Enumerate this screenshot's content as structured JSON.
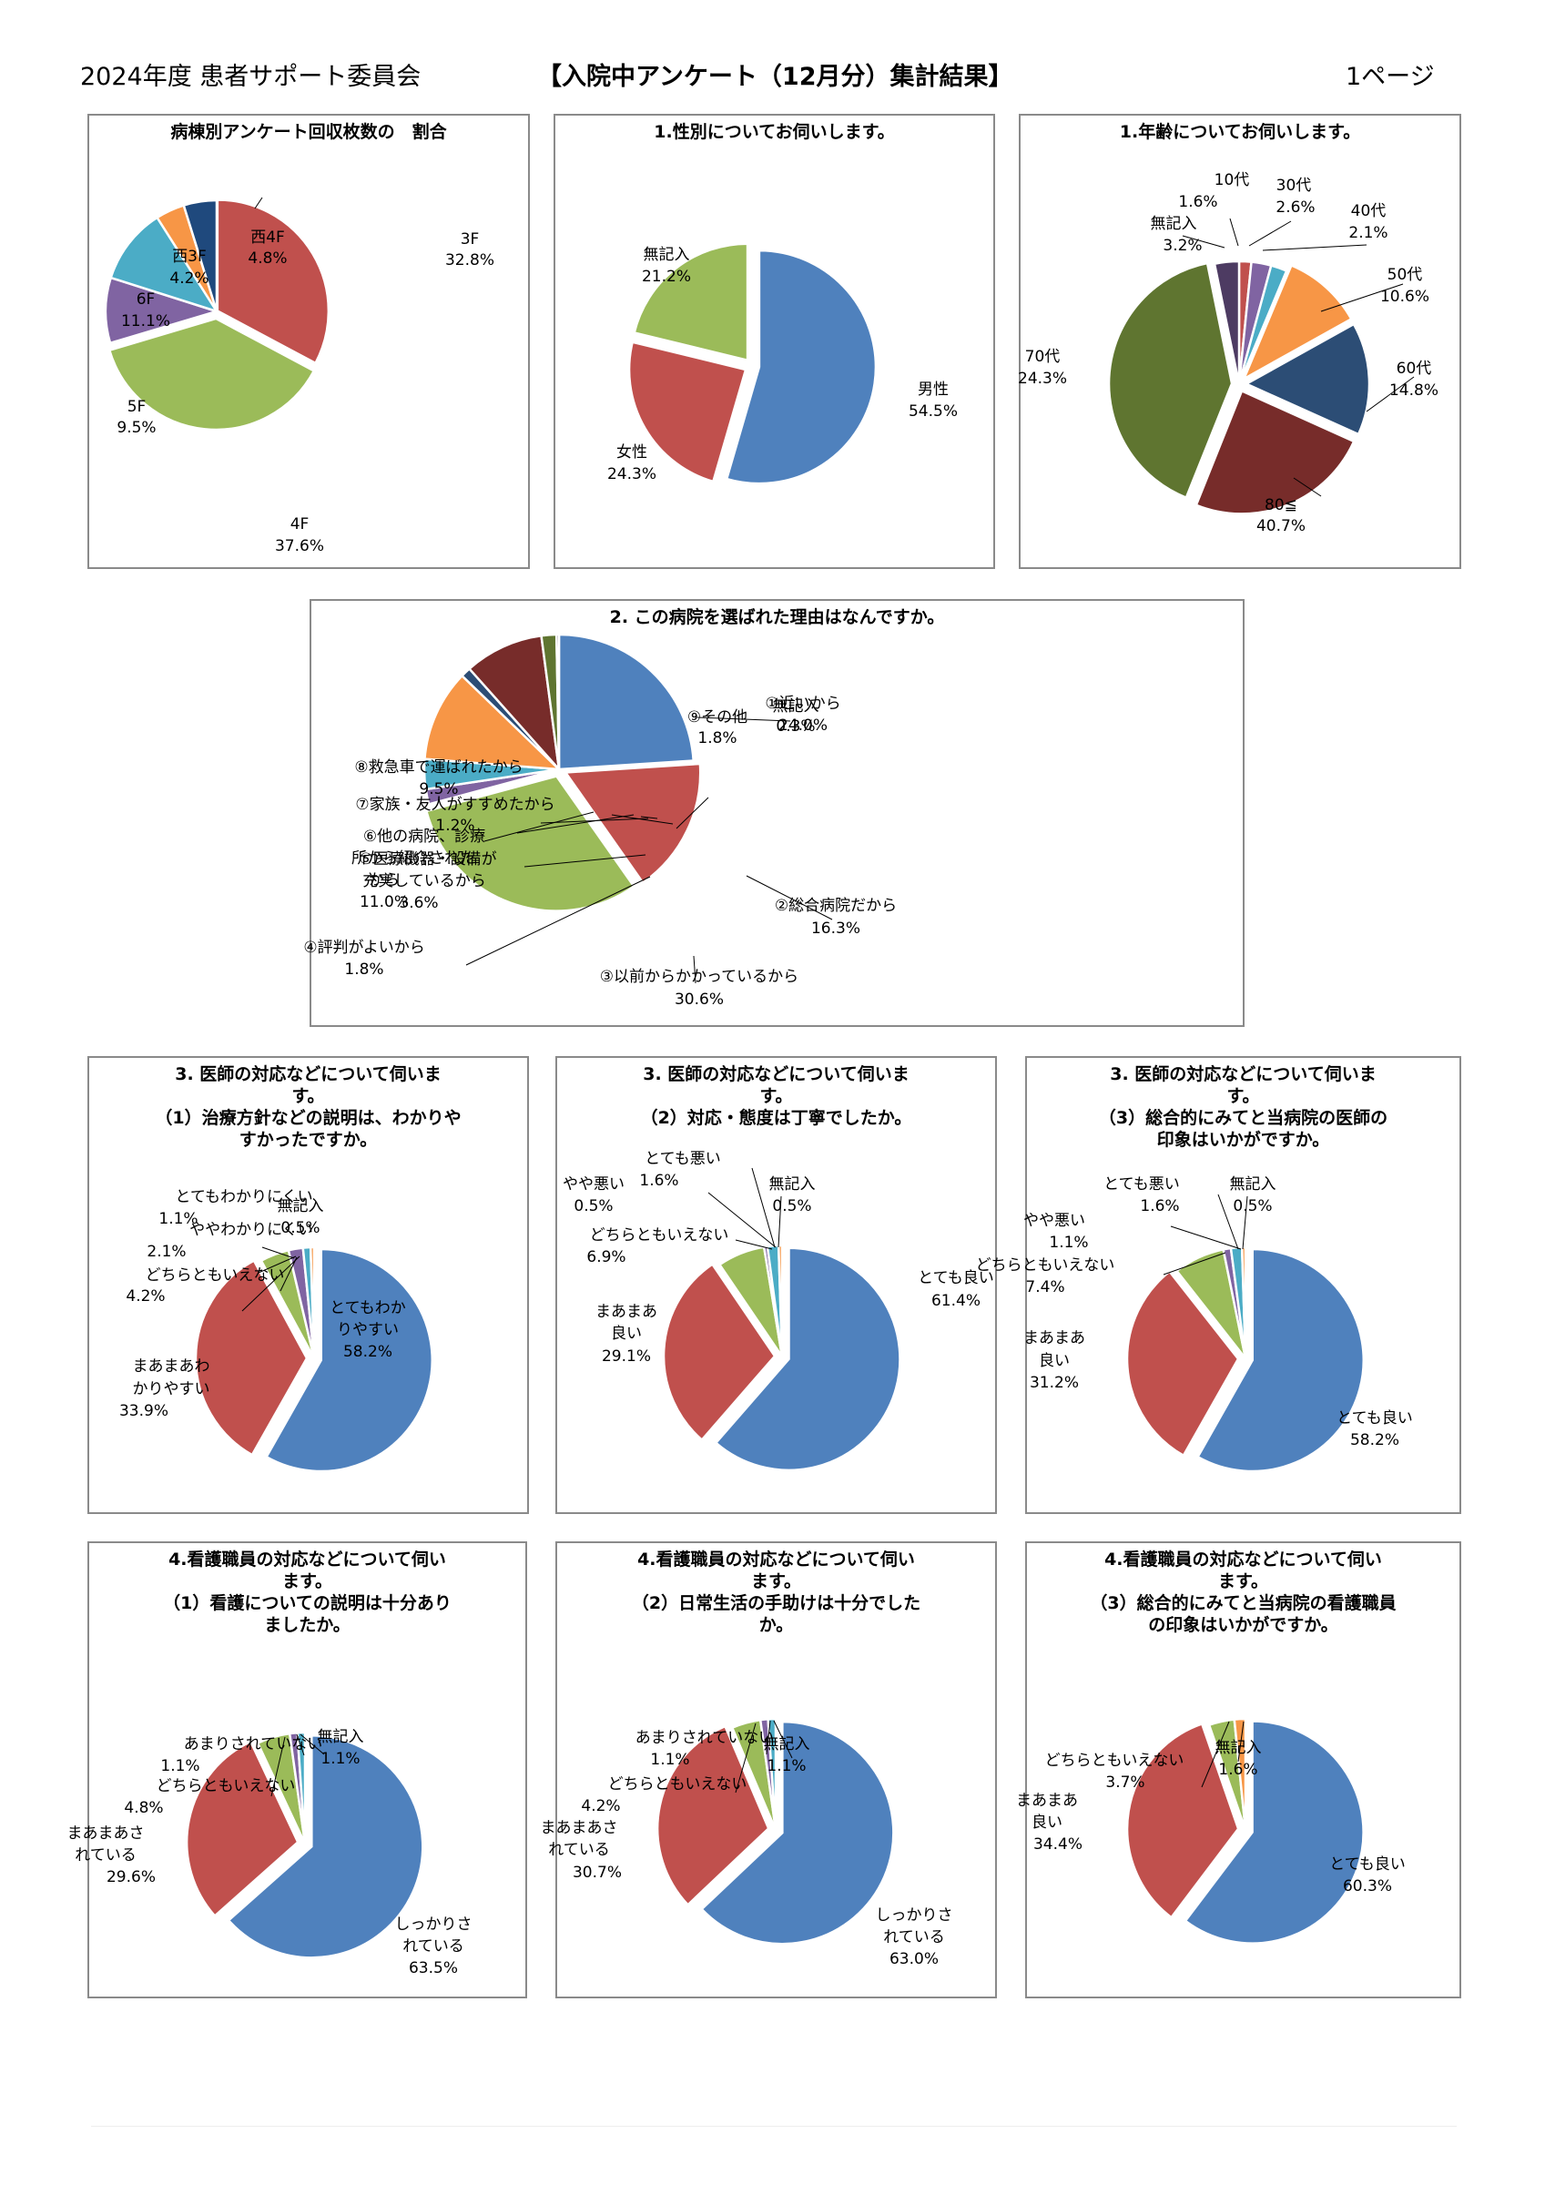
{
  "header": {
    "left": "2024年度 患者サポート委員会",
    "center": "【入院中アンケート（12月分）集計結果】",
    "right": "1ページ"
  },
  "chart_data": [
    {
      "id": "c1",
      "type": "pie",
      "title": [
        "病棟別アンケート回収枚数の　割合"
      ],
      "slices": [
        {
          "name": "3F",
          "value": 32.8,
          "color": "#C0504D"
        },
        {
          "name": "4F",
          "value": 37.6,
          "color": "#9BBB59"
        },
        {
          "name": "5F",
          "value": 9.5,
          "color": "#8064A2"
        },
        {
          "name": "6F",
          "value": 11.1,
          "color": "#4BACC6"
        },
        {
          "name": "西3F",
          "value": 4.2,
          "color": "#F79646"
        },
        {
          "name": "西4F",
          "value": 4.8,
          "color": "#1F497D"
        }
      ],
      "labels": [
        "3F",
        "32.8%",
        "4F",
        "37.6%",
        "5F",
        "9.5%",
        "6F",
        "11.1%",
        "西3F",
        "4.2%",
        "西4F",
        "4.8%"
      ]
    },
    {
      "id": "c2",
      "type": "pie",
      "title": [
        "1.性別についてお伺いします。"
      ],
      "slices": [
        {
          "name": "男性",
          "value": 54.5,
          "color": "#4F81BD"
        },
        {
          "name": "女性",
          "value": 24.3,
          "color": "#C0504D"
        },
        {
          "name": "無記入",
          "value": 21.2,
          "color": "#9BBB59"
        }
      ],
      "labels": [
        "男性",
        "54.5%",
        "女性",
        "24.3%",
        "無記入",
        "21.2%"
      ]
    },
    {
      "id": "c3",
      "type": "pie",
      "title": [
        "1.年齢についてお伺いします。"
      ],
      "slices": [
        {
          "name": "10代",
          "value": 1.6,
          "color": "#C0504D"
        },
        {
          "name": "30代",
          "value": 2.6,
          "color": "#8064A2"
        },
        {
          "name": "40代",
          "value": 2.1,
          "color": "#4BACC6"
        },
        {
          "name": "50代",
          "value": 10.6,
          "color": "#F79646"
        },
        {
          "name": "60代",
          "value": 14.8,
          "color": "#2C4D75"
        },
        {
          "name": "70代",
          "value": 24.3,
          "color": "#772C2A"
        },
        {
          "name": "80≦",
          "value": 40.7,
          "color": "#5F7530"
        },
        {
          "name": "無記入",
          "value": 3.2,
          "color": "#4D3B62"
        }
      ],
      "labels": [
        "10代",
        "1.6%",
        "30代",
        "2.6%",
        "40代",
        "2.1%",
        "50代",
        "10.6%",
        "60代",
        "14.8%",
        "70代",
        "24.3%",
        "80≦",
        "40.7%",
        "無記入",
        "3.2%"
      ]
    },
    {
      "id": "c4",
      "type": "pie",
      "title": [
        "2. この病院を選ばれた理由はなんですか。"
      ],
      "slices": [
        {
          "name": "①近いから",
          "value": 24.0,
          "color": "#4F81BD"
        },
        {
          "name": "②総合病院だから",
          "value": 16.3,
          "color": "#C0504D"
        },
        {
          "name": "③以前からかかっているから",
          "value": 30.6,
          "color": "#9BBB59"
        },
        {
          "name": "④評判がよいから",
          "value": 1.8,
          "color": "#8064A2"
        },
        {
          "name": "⑤医療機器・設備が充実しているから",
          "value": 3.6,
          "color": "#4BACC6"
        },
        {
          "name": "⑥他の病院、診療所から紹介されたから",
          "value": 11.0,
          "color": "#F79646"
        },
        {
          "name": "⑦家族・友人がすすめたから",
          "value": 1.2,
          "color": "#2C4D75"
        },
        {
          "name": "⑧救急車で運ばれたから",
          "value": 9.5,
          "color": "#772C2A"
        },
        {
          "name": "⑨その他",
          "value": 1.8,
          "color": "#5F7530"
        },
        {
          "name": "無記入",
          "value": 0.3,
          "color": "#4D3B62"
        }
      ],
      "labels": [
        "①近いから",
        "24.0%",
        "②総合病院だから",
        "16.3%",
        "③以前からかかっているから",
        "30.6%",
        "④評判がよいから",
        "1.8%",
        "⑤医療機器・設備が",
        "充実しているから",
        "3.6%",
        "⑥他の病院、診療",
        "所から紹介された",
        "から",
        "11.0%",
        "⑦家族・友人がすすめたから",
        "1.2%",
        "⑧救急車で運ばれたから",
        "9.5%",
        "⑨その他",
        "1.8%",
        "無記入",
        "0.3%"
      ]
    },
    {
      "id": "c5",
      "type": "pie",
      "title": [
        "3. 医師の対応などについて伺いま",
        "す。",
        "（1）治療方針などの説明は、わかりや",
        "すかったですか。"
      ],
      "slices": [
        {
          "name": "とてもわかりやすい",
          "value": 58.2,
          "color": "#4F81BD"
        },
        {
          "name": "まあまあわかりやすい",
          "value": 33.9,
          "color": "#C0504D"
        },
        {
          "name": "どちらともいえない",
          "value": 4.2,
          "color": "#9BBB59"
        },
        {
          "name": "ややわかりにくい",
          "value": 2.1,
          "color": "#8064A2"
        },
        {
          "name": "とてもわかりにくい",
          "value": 1.1,
          "color": "#4BACC6"
        },
        {
          "name": "無記入",
          "value": 0.5,
          "color": "#F79646"
        }
      ],
      "labels": [
        "とてもわか",
        "りやすい",
        "58.2%",
        "まあまあわ",
        "かりやすい",
        "33.9%",
        "どちらともいえない",
        "4.2%",
        "ややわかりにくい",
        "2.1%",
        "とてもわかりにくい",
        "1.1%",
        "無記入",
        "0.5%"
      ]
    },
    {
      "id": "c6",
      "type": "pie",
      "title": [
        "3. 医師の対応などについて伺いま",
        "す。",
        "（2）対応・態度は丁寧でしたか。"
      ],
      "slices": [
        {
          "name": "とても良い",
          "value": 61.4,
          "color": "#4F81BD"
        },
        {
          "name": "まあまあ良い",
          "value": 29.1,
          "color": "#C0504D"
        },
        {
          "name": "どちらともいえない",
          "value": 6.9,
          "color": "#9BBB59"
        },
        {
          "name": "やや悪い",
          "value": 0.5,
          "color": "#8064A2"
        },
        {
          "name": "とても悪い",
          "value": 1.6,
          "color": "#4BACC6"
        },
        {
          "name": "無記入",
          "value": 0.5,
          "color": "#F79646"
        }
      ],
      "labels": [
        "とても良い",
        "61.4%",
        "まあまあ",
        "良い",
        "29.1%",
        "どちらともいえない",
        "6.9%",
        "やや悪い",
        "0.5%",
        "とても悪い",
        "1.6%",
        "無記入",
        "0.5%"
      ]
    },
    {
      "id": "c7",
      "type": "pie",
      "title": [
        "3. 医師の対応などについて伺いま",
        "す。",
        "（3）総合的にみてと当病院の医師の",
        "印象はいかがですか。"
      ],
      "slices": [
        {
          "name": "とても良い",
          "value": 58.2,
          "color": "#4F81BD"
        },
        {
          "name": "まあまあ良い",
          "value": 31.2,
          "color": "#C0504D"
        },
        {
          "name": "どちらともいえない",
          "value": 7.4,
          "color": "#9BBB59"
        },
        {
          "name": "やや悪い",
          "value": 1.1,
          "color": "#8064A2"
        },
        {
          "name": "とても悪い",
          "value": 1.6,
          "color": "#4BACC6"
        },
        {
          "name": "無記入",
          "value": 0.5,
          "color": "#F79646"
        }
      ],
      "labels": [
        "とても良い",
        "58.2%",
        "まあまあ",
        "良い",
        "31.2%",
        "どちらともいえない",
        "7.4%",
        "やや悪い",
        "1.1%",
        "とても悪い",
        "1.6%",
        "無記入",
        "0.5%"
      ]
    },
    {
      "id": "c8",
      "type": "pie",
      "title": [
        "4.看護職員の対応などについて伺い",
        "ます。",
        "（1）看護についての説明は十分あり",
        "ましたか。"
      ],
      "slices": [
        {
          "name": "しっかりされている",
          "value": 63.5,
          "color": "#4F81BD"
        },
        {
          "name": "まあまあされている",
          "value": 29.6,
          "color": "#C0504D"
        },
        {
          "name": "どちらともいえない",
          "value": 4.8,
          "color": "#9BBB59"
        },
        {
          "name": "あまりされていない",
          "value": 1.1,
          "color": "#8064A2"
        },
        {
          "name": "無記入",
          "value": 1.1,
          "color": "#4BACC6"
        }
      ],
      "labels": [
        "しっかりさ",
        "れている",
        "63.5%",
        "まあまあさ",
        "れている",
        "29.6%",
        "どちらともいえない",
        "4.8%",
        "あまりされていない",
        "1.1%",
        "無記入",
        "1.1%"
      ]
    },
    {
      "id": "c9",
      "type": "pie",
      "title": [
        "4.看護職員の対応などについて伺い",
        "ます。",
        "（2）日常生活の手助けは十分でした",
        "か。"
      ],
      "slices": [
        {
          "name": "しっかりされている",
          "value": 63.0,
          "color": "#4F81BD"
        },
        {
          "name": "まあまあされている",
          "value": 30.7,
          "color": "#C0504D"
        },
        {
          "name": "どちらともいえない",
          "value": 4.2,
          "color": "#9BBB59"
        },
        {
          "name": "あまりされていない",
          "value": 1.1,
          "color": "#8064A2"
        },
        {
          "name": "無記入",
          "value": 1.1,
          "color": "#4BACC6"
        }
      ],
      "labels": [
        "しっかりさ",
        "れている",
        "63.0%",
        "まあまあさ",
        "れている",
        "30.7%",
        "どちらともいえない",
        "4.2%",
        "あまりされていない",
        "1.1%",
        "無記入",
        "1.1%"
      ]
    },
    {
      "id": "c10",
      "type": "pie",
      "title": [
        "4.看護職員の対応などについて伺い",
        "ます。",
        "（3）総合的にみてと当病院の看護職員",
        "の印象はいかがですか。"
      ],
      "slices": [
        {
          "name": "とても良い",
          "value": 60.3,
          "color": "#4F81BD"
        },
        {
          "name": "まあまあ良い",
          "value": 34.4,
          "color": "#C0504D"
        },
        {
          "name": "どちらともいえない",
          "value": 3.7,
          "color": "#9BBB59"
        },
        {
          "name": "無記入",
          "value": 1.6,
          "color": "#F79646"
        }
      ],
      "labels": [
        "とても良い",
        "60.3%",
        "まあまあ",
        "良い",
        "34.4%",
        "どちらともいえない",
        "3.7%",
        "無記入",
        "1.6%"
      ]
    }
  ]
}
